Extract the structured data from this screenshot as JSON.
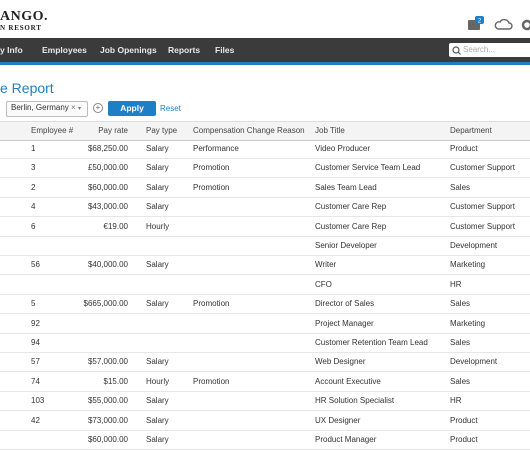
{
  "header": {
    "logo": "ANGO.",
    "logo_sub": "N RESORT",
    "badge": "2"
  },
  "nav": [
    "y Info",
    "Employees",
    "Job Openings",
    "Reports",
    "Files"
  ],
  "search_placeholder": "Search...",
  "page_title": "e Report",
  "filter": {
    "value": "Berlin, Germany",
    "clear": "×"
  },
  "buttons": {
    "apply": "Apply",
    "reset": "Reset"
  },
  "table": {
    "columns": [
      "Employee #",
      "Pay rate",
      "Pay type",
      "Compensation Change Reason",
      "Job Title",
      "Department"
    ],
    "rows": [
      [
        "1",
        "$68,250.00",
        "Salary",
        "Performance",
        "Video Producer",
        "Product"
      ],
      [
        "3",
        "£50,000.00",
        "Salary",
        "Promotion",
        "Customer Service Team Lead",
        "Customer Support"
      ],
      [
        "2",
        "$60,000.00",
        "Salary",
        "Promotion",
        "Sales Team Lead",
        "Sales"
      ],
      [
        "4",
        "$43,000.00",
        "Salary",
        null,
        "Customer Care Rep",
        "Customer Support"
      ],
      [
        "6",
        "€19.00",
        "Hourly",
        null,
        "Customer Care Rep",
        "Customer Support"
      ],
      [
        null,
        null,
        null,
        null,
        "Senior Developer",
        "Development"
      ],
      [
        "56",
        "$40,000.00",
        "Salary",
        null,
        "Writer",
        "Marketing"
      ],
      [
        null,
        null,
        null,
        null,
        "CFO",
        "HR"
      ],
      [
        "5",
        "$665,000.00",
        "Salary",
        "Promotion",
        "Director of Sales",
        "Sales"
      ],
      [
        "92",
        null,
        null,
        null,
        "Project Manager",
        "Marketing"
      ],
      [
        "94",
        null,
        null,
        null,
        "Customer Retention Team Lead",
        "Sales"
      ],
      [
        "57",
        "$57,000.00",
        "Salary",
        null,
        "Web Designer",
        "Development"
      ],
      [
        "74",
        "$15.00",
        "Hourly",
        "Promotion",
        "Account Executive",
        "Sales"
      ],
      [
        "103",
        "$55,000.00",
        "Salary",
        null,
        "HR Solution Specialist",
        "HR"
      ],
      [
        "42",
        "$73,000.00",
        "Salary",
        null,
        "UX Designer",
        "Product"
      ],
      [
        null,
        "$60,000.00",
        "Salary",
        null,
        "Product Manager",
        "Product"
      ]
    ]
  }
}
